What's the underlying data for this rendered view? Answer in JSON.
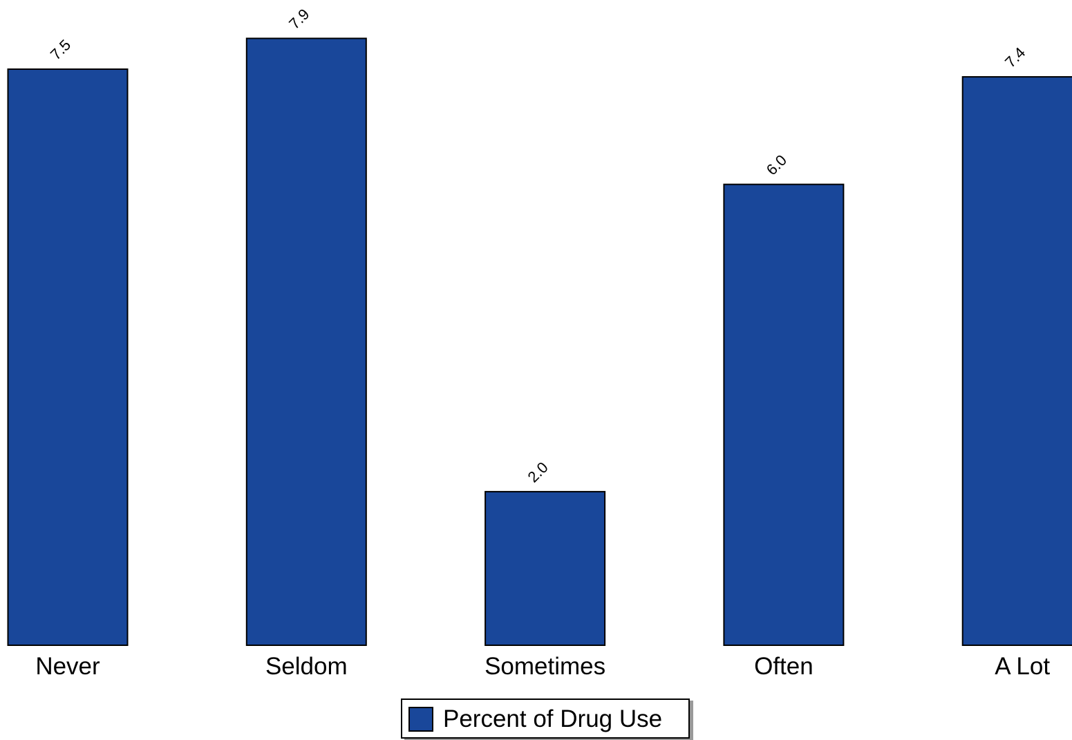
{
  "colors": {
    "bar_fill": "#19479A",
    "bar_stroke": "#000000",
    "text": "#000000",
    "background": "#FFFFFF",
    "legend_shadow": "#9A9A9A"
  },
  "chart_data": {
    "type": "bar",
    "categories": [
      "Never",
      "Seldom",
      "Sometimes",
      "Often",
      "A Lot"
    ],
    "series": [
      {
        "name": "Percent of Drug Use",
        "values": [
          7.5,
          7.9,
          2.0,
          6.0,
          7.4
        ],
        "value_labels": [
          "7.5",
          "7.9",
          "2.0",
          "6.0",
          "7.4"
        ]
      }
    ],
    "ylim": [
      0,
      8.4
    ],
    "grid": false,
    "legend_position": "bottom-center",
    "data_labels": "rotated-45"
  },
  "legend": {
    "label": "Percent of Drug Use"
  }
}
